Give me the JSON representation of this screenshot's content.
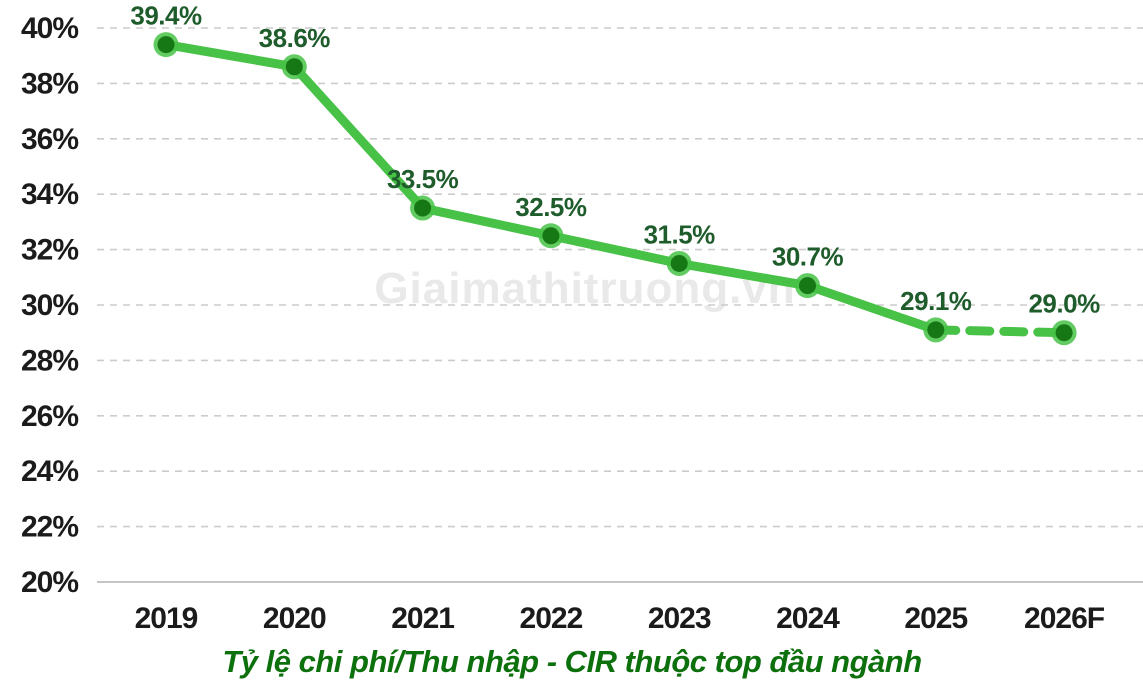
{
  "watermark": {
    "text": "Giaimathitruong.vn",
    "color": "#e9e9e9"
  },
  "chart_data": {
    "type": "line",
    "title": "Tỷ lệ chi phí/Thu nhập - CIR thuộc top đầu ngành",
    "categories": [
      "2019",
      "2020",
      "2021",
      "2022",
      "2023",
      "2024",
      "2025",
      "2026F"
    ],
    "values": [
      39.4,
      38.6,
      33.5,
      32.5,
      31.5,
      30.7,
      29.1,
      29.0
    ],
    "data_labels": [
      "39.4%",
      "38.6%",
      "33.5%",
      "32.5%",
      "31.5%",
      "30.7%",
      "29.1%",
      "29.0%"
    ],
    "ylim": [
      20,
      40
    ],
    "ytick_step": 2,
    "ytick_suffix": "%",
    "grid": "horizontal-dashed",
    "legend": "none",
    "forecast_from_index": 6,
    "forecast_style": "dashed",
    "line_color": "#47c247",
    "marker_color": "#157815",
    "marker_halo_color": "#47c247",
    "label_color": "#1f5c2c",
    "title_color": "#0c700c",
    "axis_label_color": "#1b1b1b",
    "grid_color": "#cccccc",
    "baseline_color": "#c5c5c5"
  }
}
